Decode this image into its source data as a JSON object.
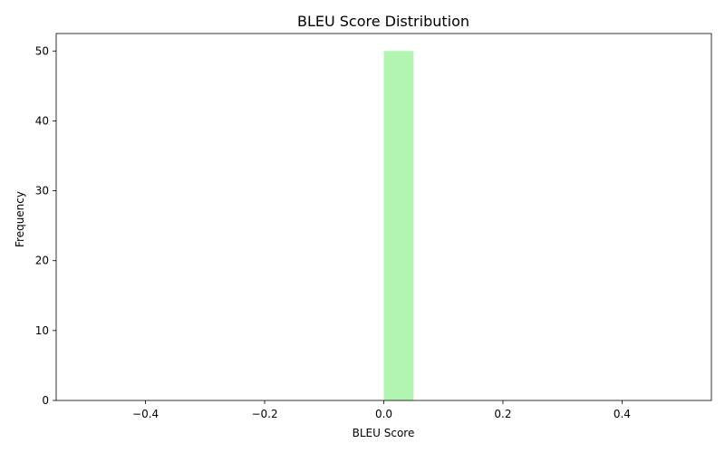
{
  "chart_data": {
    "type": "bar",
    "title": "BLEU Score Distribution",
    "xlabel": "BLEU Score",
    "ylabel": "Frequency",
    "xlim": [
      -0.55,
      0.55
    ],
    "ylim": [
      0,
      52.5
    ],
    "xticks": [
      -0.4,
      -0.2,
      0.0,
      0.2,
      0.4
    ],
    "xtick_labels": [
      "−0.4",
      "−0.2",
      "0.0",
      "0.2",
      "0.4"
    ],
    "yticks": [
      0,
      10,
      20,
      30,
      40,
      50
    ],
    "ytick_labels": [
      "0",
      "10",
      "20",
      "30",
      "40",
      "50"
    ],
    "bars": [
      {
        "x_start": 0.0,
        "x_end": 0.05,
        "value": 50
      }
    ],
    "bar_color": "#b3f5b3",
    "grid": false,
    "legend": "none"
  }
}
